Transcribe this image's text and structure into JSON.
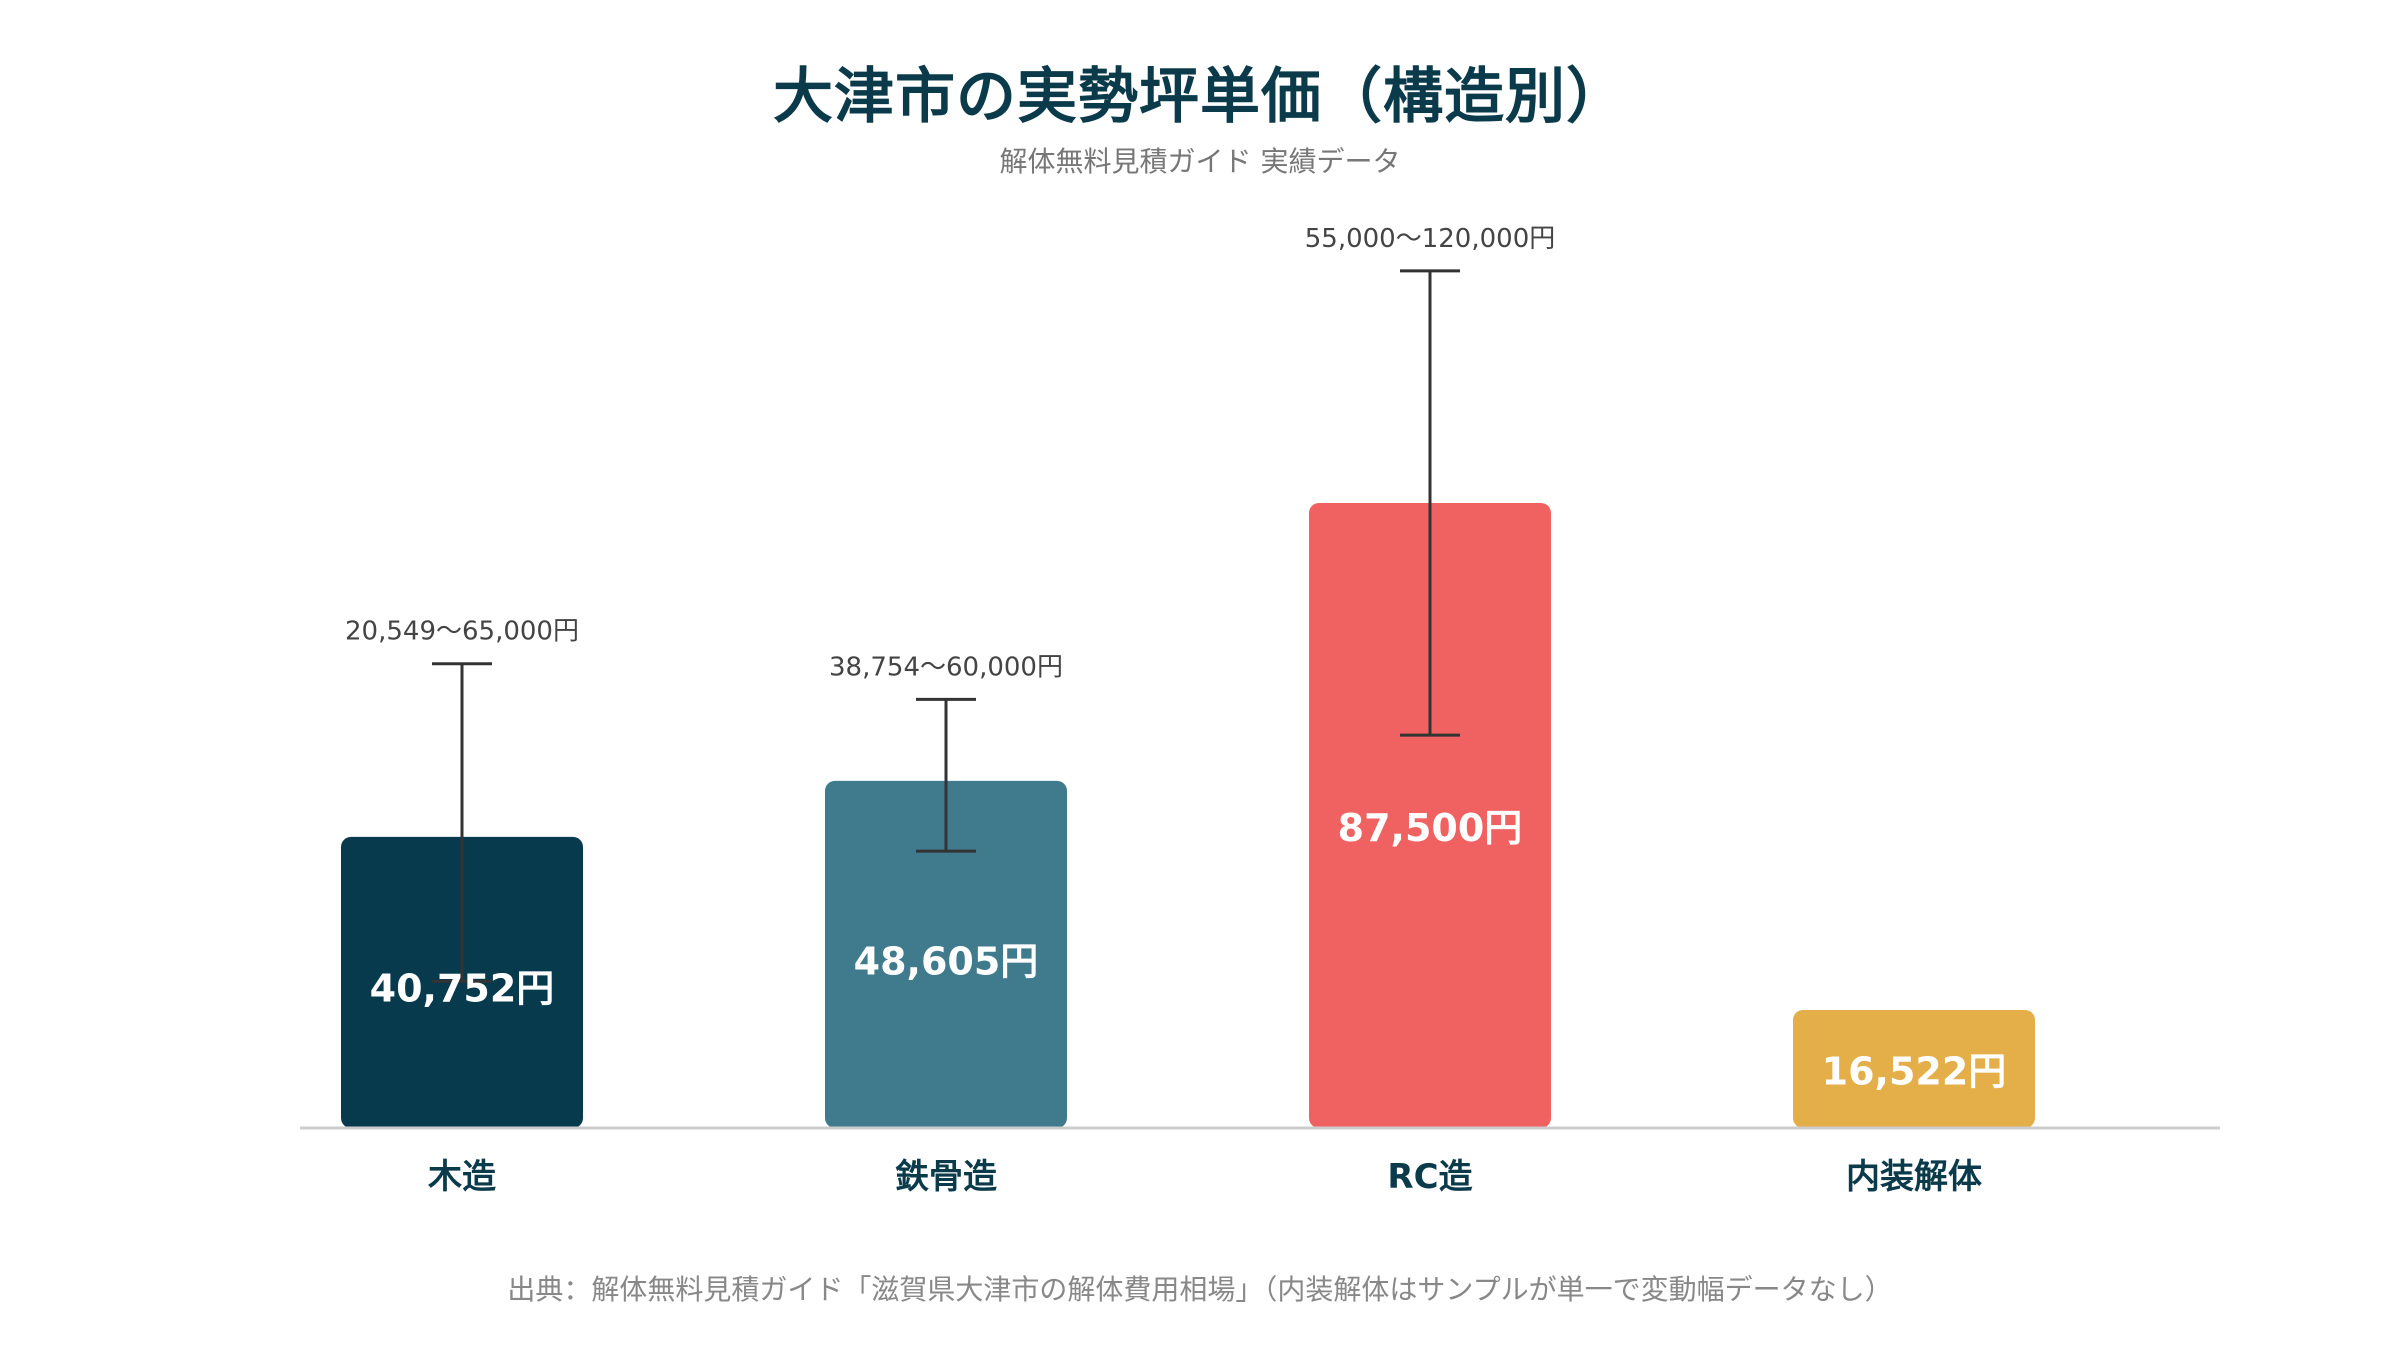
{
  "chart_data": {
    "type": "bar",
    "title": "大津市の実勢坪単価（構造別）",
    "subtitle": "解体無料見積ガイド 実績データ",
    "source": "出典：解体無料見積ガイド「滋賀県大津市の解体費用相場」（内装解体はサンプルが単一で変動幅データなし）",
    "ylim": [
      0,
      140000
    ],
    "categories": [
      "木造",
      "鉄骨造",
      "RC造",
      "内装解体"
    ],
    "values": [
      40752,
      48605,
      87500,
      16522
    ],
    "value_labels": [
      "40,752円",
      "48,605円",
      "87,500円",
      "16,522円"
    ],
    "ranges": [
      [
        20549,
        65000
      ],
      [
        38754,
        60000
      ],
      [
        55000,
        120000
      ],
      null
    ],
    "range_labels": [
      "20,549〜65,000円",
      "38,754〜60,000円",
      "55,000〜120,000円",
      ""
    ],
    "colors": [
      "#073a4d",
      "#3f7b8c",
      "#f06262",
      "#e4ae48"
    ],
    "axis_color": "#cccccc",
    "errorbar_color": "#333333",
    "category_label_color": "#0b3a4b",
    "grid": false,
    "legend": "none"
  }
}
